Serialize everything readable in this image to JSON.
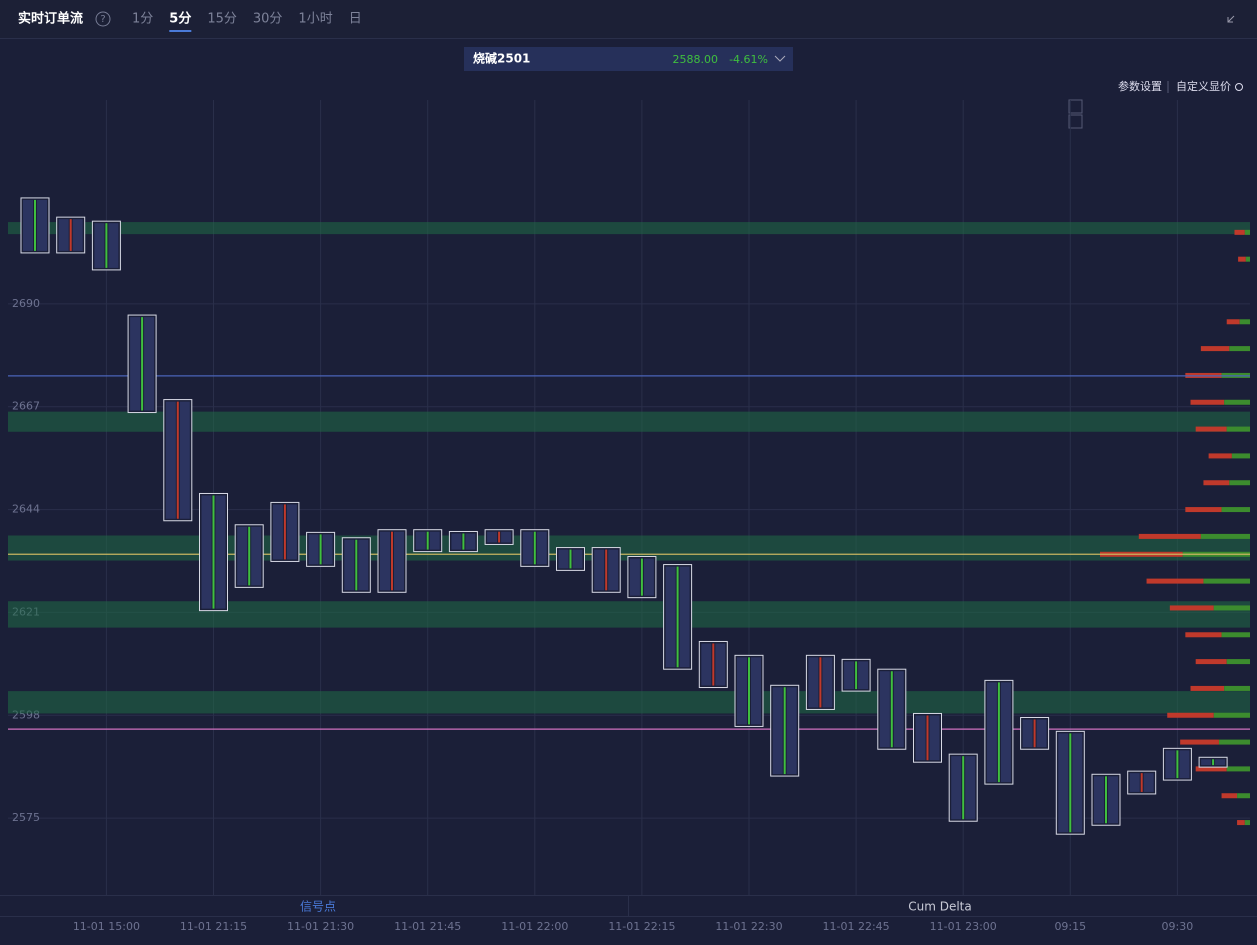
{
  "chart_data": {
    "type": "footprint",
    "title": "实时订单流",
    "help": "?",
    "timeframes": [
      "1分",
      "5分",
      "15分",
      "30分",
      "1小时",
      "日"
    ],
    "active_timeframe": "5分",
    "symbol": "烧碱2501",
    "price": "2588.00",
    "change": "-4.61%",
    "settings": [
      "参数设置",
      "自定义显价"
    ],
    "panels": [
      "信号点",
      "Cum Delta"
    ],
    "categories": [
      null,
      null,
      "11-01 15:00",
      null,
      null,
      "11-01 21:15",
      null,
      null,
      "11-01 21:30",
      null,
      null,
      "11-01 21:45",
      null,
      null,
      "11-01 22:00",
      null,
      null,
      "11-01 22:15",
      null,
      null,
      "11-01 22:30",
      null,
      null,
      "11-01 22:45",
      null,
      null,
      "11-01 23:00",
      null,
      null,
      "09:15",
      null,
      null,
      "09:30",
      null
    ],
    "high": [
      2713.7,
      2709.4,
      2708.5,
      2687.5,
      2668.6,
      2647.6,
      2640.6,
      2645.6,
      2638.9,
      2637.7,
      2639.5,
      2639.5,
      2639.1,
      2639.5,
      2639.5,
      2635.5,
      2635.5,
      2633.5,
      2631.7,
      2614.5,
      2611.4,
      2604.7,
      2611.4,
      2610.5,
      2608.3,
      2598.4,
      2589.3,
      2605.8,
      2597.5,
      2594.4,
      2584.8,
      2585.5,
      2590.6,
      2588.6
    ],
    "low": [
      2701.4,
      2701.4,
      2697.6,
      2665.7,
      2641.5,
      2621.4,
      2626.6,
      2632.4,
      2631.3,
      2625.5,
      2625.5,
      2634.6,
      2634.6,
      2636.2,
      2631.3,
      2630.4,
      2625.5,
      2624.3,
      2608.3,
      2604.2,
      2595.5,
      2584.4,
      2599.3,
      2603.4,
      2590.4,
      2587.5,
      2574.3,
      2582.6,
      2590.4,
      2571.4,
      2573.4,
      2580.4,
      2583.5,
      2586.4
    ],
    "levels": [
      {
        "value": 2673.9,
        "color": "#4a63b8"
      },
      {
        "value": 2634.0,
        "color": "#c8b560"
      },
      {
        "value": 2594.9,
        "color": "#d070c0"
      }
    ],
    "zones": [
      [
        2708.3,
        2705.6
      ],
      [
        2665.9,
        2661.4
      ],
      [
        2638.2,
        2632.6
      ],
      [
        2623.5,
        2617.6
      ],
      [
        2603.4,
        2598.4
      ]
    ],
    "profile": {
      "prices": [
        2706,
        2700,
        2686,
        2680,
        2674,
        2668,
        2662,
        2656,
        2650,
        2644,
        2638,
        2634,
        2628,
        2622,
        2616,
        2610,
        2604,
        2598,
        2592,
        2586,
        2580,
        2574
      ],
      "sell": [
        20,
        15,
        25,
        55,
        70,
        65,
        60,
        45,
        50,
        70,
        120,
        160,
        110,
        85,
        70,
        60,
        65,
        90,
        75,
        60,
        30,
        15
      ],
      "buy": [
        10,
        8,
        20,
        40,
        55,
        50,
        45,
        35,
        40,
        55,
        95,
        130,
        90,
        70,
        55,
        45,
        50,
        70,
        60,
        45,
        25,
        10
      ]
    },
    "ylim": [
      2557.8,
      2735.6
    ],
    "yticks": [
      2575,
      2598,
      2621,
      2644,
      2667,
      2690
    ],
    "grid": true
  }
}
